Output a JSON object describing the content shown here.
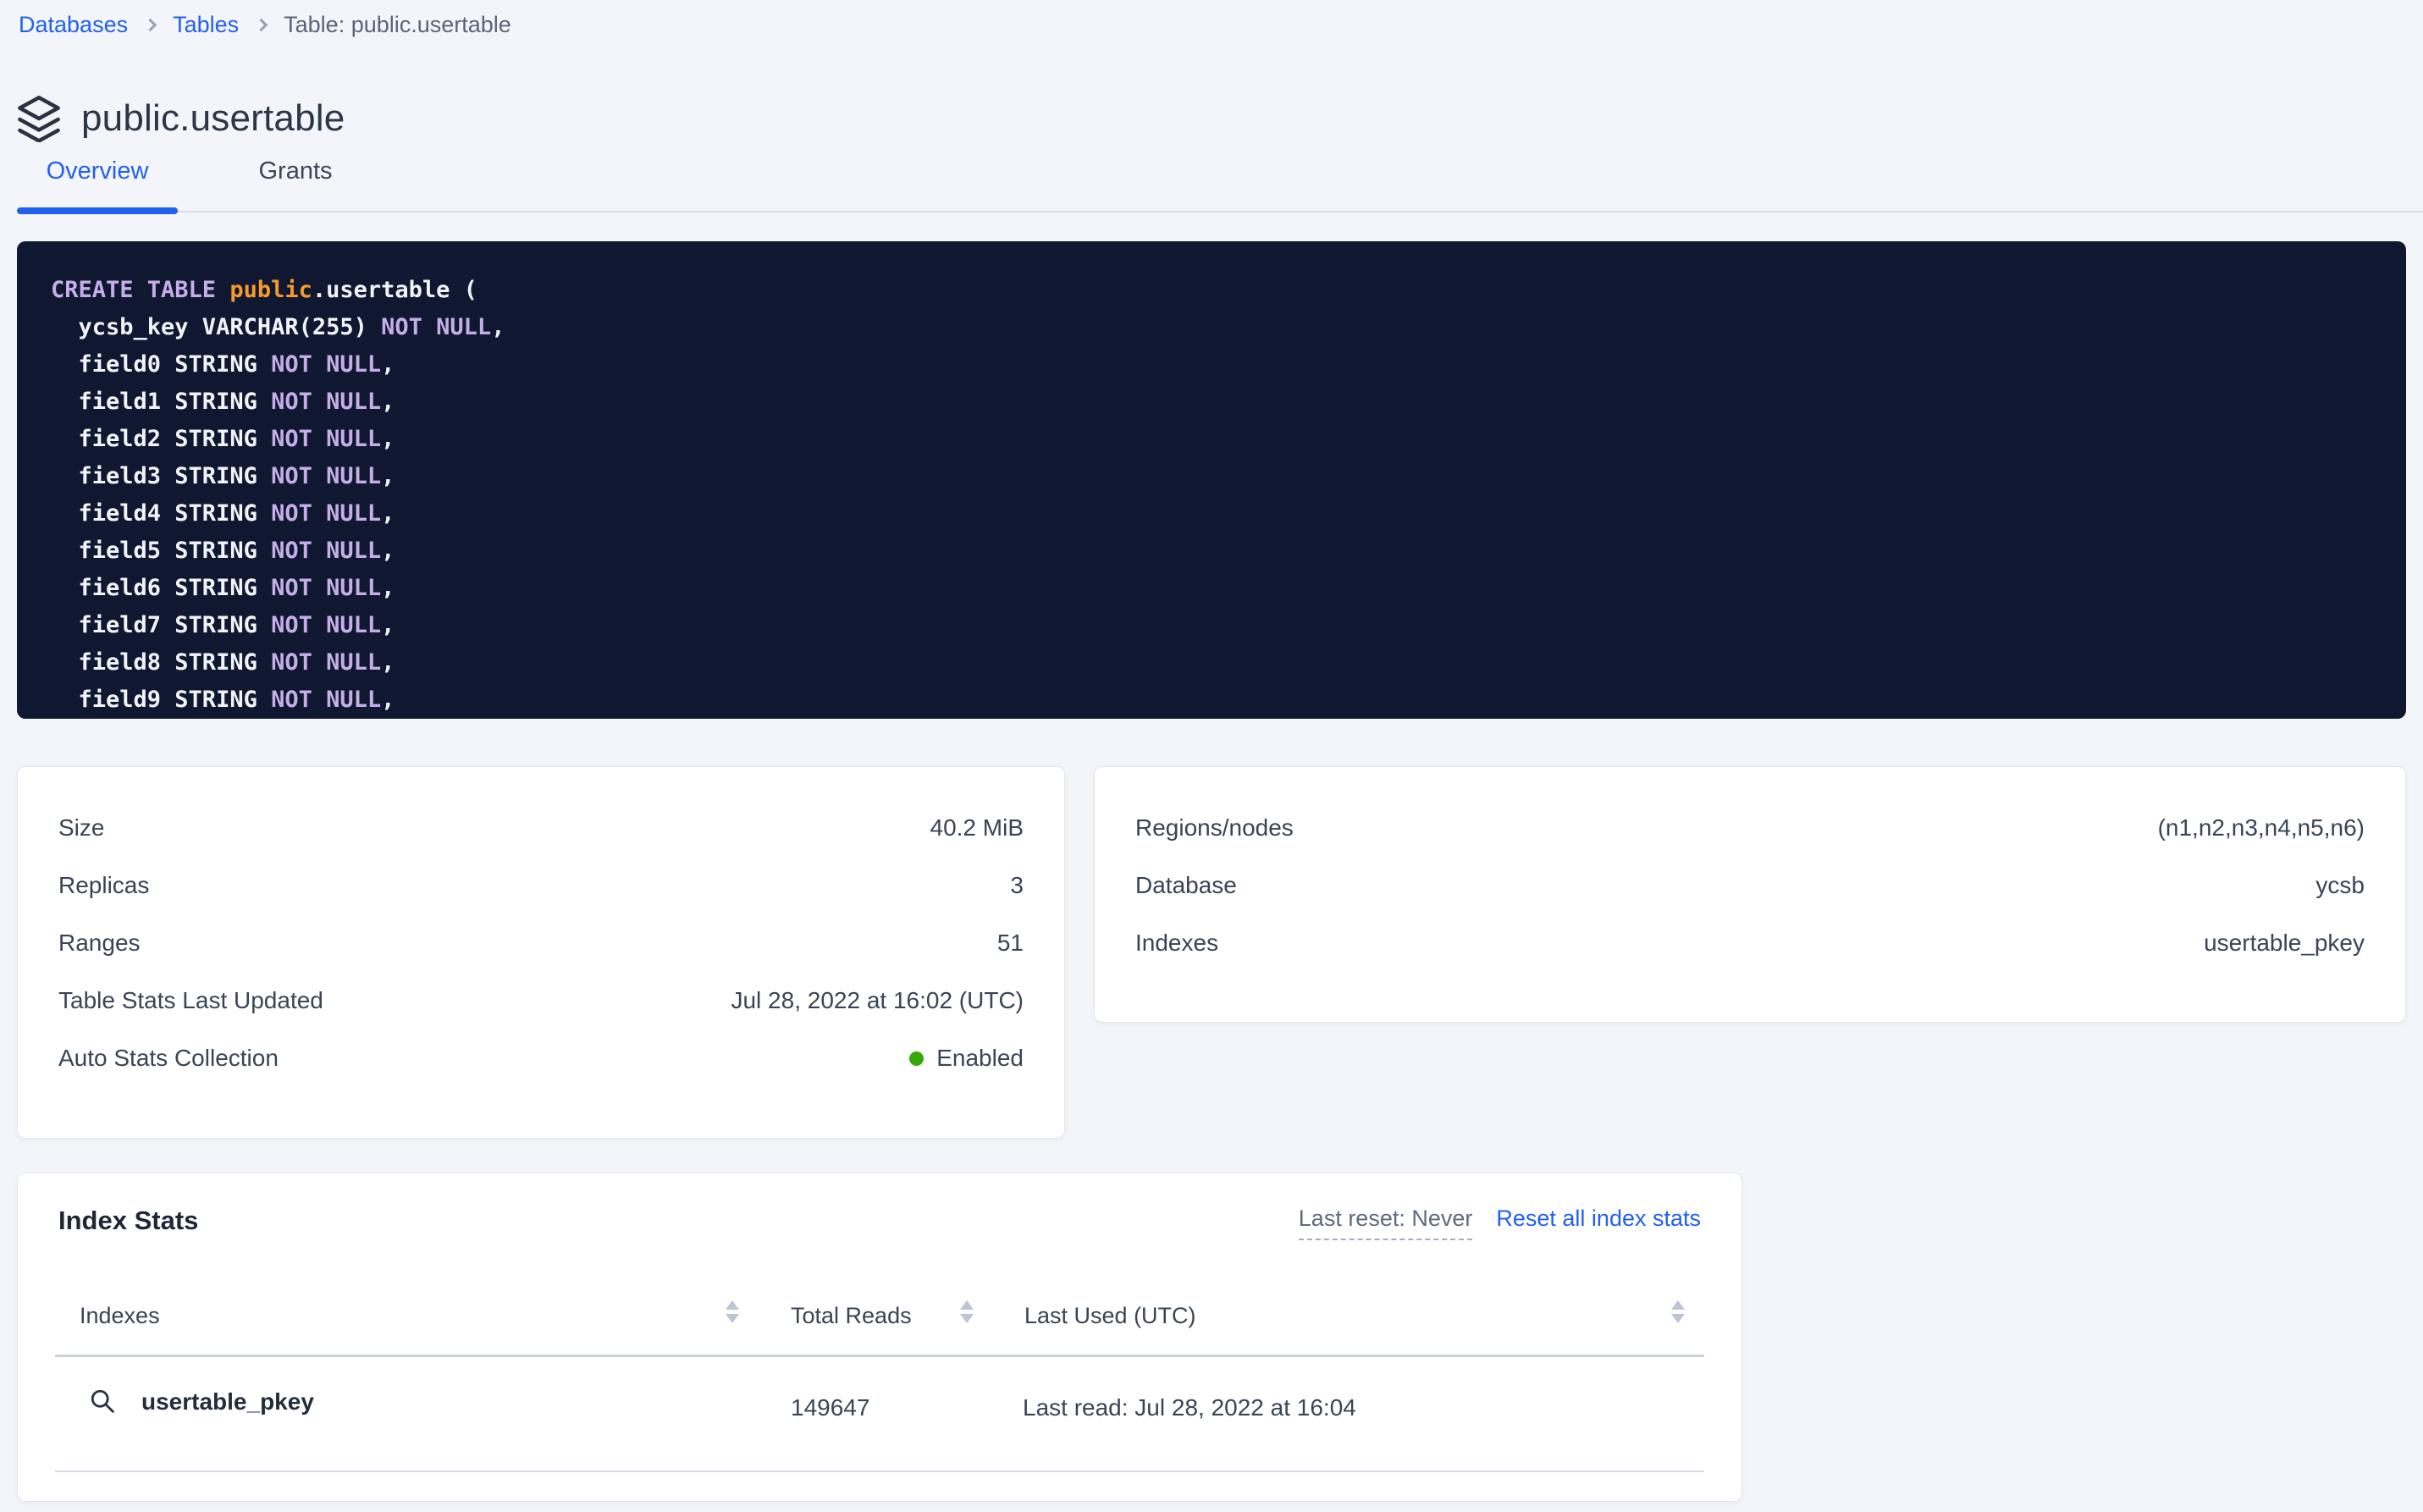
{
  "breadcrumb": {
    "items": [
      {
        "label": "Databases"
      },
      {
        "label": "Tables"
      },
      {
        "label": "Table: public.usertable"
      }
    ]
  },
  "header": {
    "title": "public.usertable",
    "icon": "stack-icon"
  },
  "tabs": [
    {
      "label": "Overview",
      "active": true
    },
    {
      "label": "Grants",
      "active": false
    }
  ],
  "sql": {
    "lines": [
      [
        {
          "t": "CREATE TABLE ",
          "c": "kw"
        },
        {
          "t": "public",
          "c": "db"
        },
        {
          "t": ".usertable (",
          "c": "pl"
        }
      ],
      [
        {
          "t": "  ycsb_key VARCHAR(255) ",
          "c": "pl"
        },
        {
          "t": "NOT NULL",
          "c": "kw"
        },
        {
          "t": ",",
          "c": "pl"
        }
      ],
      [
        {
          "t": "  field0 STRING ",
          "c": "pl"
        },
        {
          "t": "NOT NULL",
          "c": "kw"
        },
        {
          "t": ",",
          "c": "pl"
        }
      ],
      [
        {
          "t": "  field1 STRING ",
          "c": "pl"
        },
        {
          "t": "NOT NULL",
          "c": "kw"
        },
        {
          "t": ",",
          "c": "pl"
        }
      ],
      [
        {
          "t": "  field2 STRING ",
          "c": "pl"
        },
        {
          "t": "NOT NULL",
          "c": "kw"
        },
        {
          "t": ",",
          "c": "pl"
        }
      ],
      [
        {
          "t": "  field3 STRING ",
          "c": "pl"
        },
        {
          "t": "NOT NULL",
          "c": "kw"
        },
        {
          "t": ",",
          "c": "pl"
        }
      ],
      [
        {
          "t": "  field4 STRING ",
          "c": "pl"
        },
        {
          "t": "NOT NULL",
          "c": "kw"
        },
        {
          "t": ",",
          "c": "pl"
        }
      ],
      [
        {
          "t": "  field5 STRING ",
          "c": "pl"
        },
        {
          "t": "NOT NULL",
          "c": "kw"
        },
        {
          "t": ",",
          "c": "pl"
        }
      ],
      [
        {
          "t": "  field6 STRING ",
          "c": "pl"
        },
        {
          "t": "NOT NULL",
          "c": "kw"
        },
        {
          "t": ",",
          "c": "pl"
        }
      ],
      [
        {
          "t": "  field7 STRING ",
          "c": "pl"
        },
        {
          "t": "NOT NULL",
          "c": "kw"
        },
        {
          "t": ",",
          "c": "pl"
        }
      ],
      [
        {
          "t": "  field8 STRING ",
          "c": "pl"
        },
        {
          "t": "NOT NULL",
          "c": "kw"
        },
        {
          "t": ",",
          "c": "pl"
        }
      ],
      [
        {
          "t": "  field9 STRING ",
          "c": "pl"
        },
        {
          "t": "NOT NULL",
          "c": "kw"
        },
        {
          "t": ",",
          "c": "pl"
        }
      ]
    ]
  },
  "details_left": {
    "rows": [
      {
        "label": "Size",
        "value": "40.2 MiB"
      },
      {
        "label": "Replicas",
        "value": "3"
      },
      {
        "label": "Ranges",
        "value": "51"
      },
      {
        "label": "Table Stats Last Updated",
        "value": "Jul 28, 2022 at 16:02 (UTC)"
      },
      {
        "label": "Auto Stats Collection",
        "value": "Enabled",
        "dot": true
      }
    ]
  },
  "details_right": {
    "rows": [
      {
        "label": "Regions/nodes",
        "value": "(n1,n2,n3,n4,n5,n6)"
      },
      {
        "label": "Database",
        "value": "ycsb"
      },
      {
        "label": "Indexes",
        "value": "usertable_pkey"
      }
    ]
  },
  "index_stats": {
    "title": "Index Stats",
    "last_reset": "Last reset: Never",
    "reset_link": "Reset all index stats",
    "columns": [
      "Indexes",
      "Total Reads",
      "Last Used (UTC)"
    ],
    "rows": [
      {
        "name": "usertable_pkey",
        "total_reads": "149647",
        "last_used": "Last read: Jul 28, 2022 at 16:04",
        "icon": "search-icon"
      }
    ]
  },
  "colors": {
    "accent_blue": "#2160f2",
    "status_green": "#37a806",
    "code_background": "#0f1830",
    "code_keyword": "#c5aee8",
    "code_schema_orange": "#f7992d",
    "page_background": "#f4f5fa"
  }
}
